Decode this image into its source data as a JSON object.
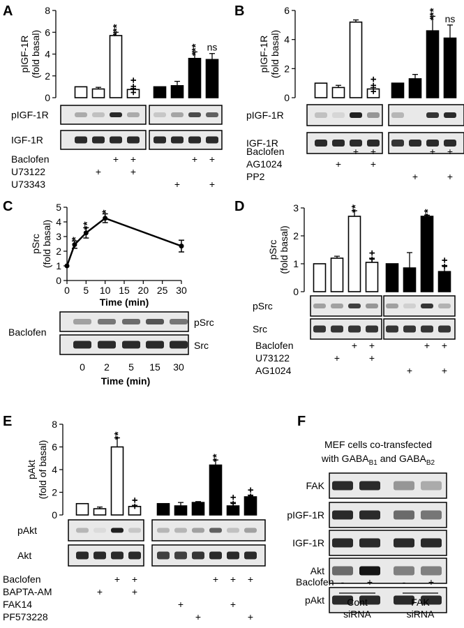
{
  "panels": {
    "A": {
      "label": "A"
    },
    "B": {
      "label": "B"
    },
    "C": {
      "label": "C"
    },
    "D": {
      "label": "D"
    },
    "E": {
      "label": "E"
    },
    "F": {
      "label": "F"
    }
  },
  "chart_data": [
    {
      "id": "A",
      "type": "bar",
      "ylabel": [
        "pIGF-1R",
        "(fold basal)"
      ],
      "ylim": [
        0,
        8
      ],
      "yticks": [
        0,
        2,
        4,
        6,
        8
      ],
      "groups": [
        {
          "color": "white",
          "values": [
            1.0,
            0.8,
            5.7,
            0.75
          ],
          "errors": [
            0.0,
            0.15,
            0.3,
            0.1
          ],
          "annotations": [
            "",
            "",
            "***",
            "+++"
          ]
        },
        {
          "color": "black",
          "values": [
            1.0,
            1.1,
            3.6,
            3.5
          ],
          "errors": [
            0.0,
            0.4,
            0.6,
            0.55
          ],
          "annotations": [
            "",
            "",
            "***",
            "ns"
          ]
        }
      ],
      "blots": [
        "pIGF-1R",
        "IGF-1R"
      ],
      "treatments": [
        {
          "name": "Baclofen",
          "signs": [
            "",
            "",
            "+",
            "+",
            "",
            "",
            "+",
            "+"
          ]
        },
        {
          "name": "U73122",
          "signs": [
            "",
            "+",
            "",
            "+",
            "",
            "",
            "",
            ""
          ]
        },
        {
          "name": "U73343",
          "signs": [
            "",
            "",
            "",
            "",
            "",
            "+",
            "",
            "+"
          ]
        }
      ]
    },
    {
      "id": "B",
      "type": "bar",
      "ylabel": [
        "pIGF-1R",
        "(fold basal)"
      ],
      "ylim": [
        0,
        6
      ],
      "yticks": [
        0,
        2,
        4,
        6
      ],
      "groups": [
        {
          "color": "white",
          "values": [
            1.0,
            0.7,
            5.2,
            0.6
          ],
          "errors": [
            0.0,
            0.15,
            0.15,
            0.1
          ],
          "annotations": [
            "",
            "",
            "",
            "+++"
          ]
        },
        {
          "color": "black",
          "values": [
            1.0,
            1.3,
            4.6,
            4.1
          ],
          "errors": [
            0.0,
            0.3,
            1.0,
            0.9
          ],
          "annotations": [
            "",
            "",
            "***",
            "ns"
          ]
        }
      ],
      "blots": [
        "pIGF-1R",
        "IGF-1R"
      ],
      "treatments": [
        {
          "name": "Baclofen",
          "signs": [
            "",
            "",
            "+",
            "+",
            "",
            "",
            "+",
            "+"
          ]
        },
        {
          "name": "AG1024",
          "signs": [
            "",
            "+",
            "",
            "+",
            "",
            "",
            "",
            ""
          ]
        },
        {
          "name": "PP2",
          "signs": [
            "",
            "",
            "",
            "",
            "",
            "+",
            "",
            "+"
          ]
        }
      ]
    },
    {
      "id": "C",
      "type": "line",
      "ylabel": [
        "pSrc",
        "(fold basal)"
      ],
      "xlabel": "Time (min)",
      "xlim": [
        0,
        30
      ],
      "ylim": [
        0,
        5
      ],
      "xticks": [
        0,
        5,
        10,
        15,
        20,
        25,
        30
      ],
      "yticks": [
        0,
        1,
        2,
        3,
        4,
        5
      ],
      "points": [
        {
          "x": 0,
          "y": 1.0,
          "err": 0.0,
          "ann": ""
        },
        {
          "x": 2,
          "y": 2.45,
          "err": 0.25,
          "ann": "*"
        },
        {
          "x": 5,
          "y": 3.25,
          "err": 0.35,
          "ann": "**"
        },
        {
          "x": 10,
          "y": 4.25,
          "err": 0.3,
          "ann": "*"
        },
        {
          "x": 30,
          "y": 2.35,
          "err": 0.4,
          "ann": ""
        }
      ],
      "blot_treatment": "Baclofen",
      "blots": [
        "pSrc",
        "Src"
      ],
      "blot_times": [
        "0",
        "2",
        "5",
        "15",
        "30"
      ],
      "blot_xlabel": "Time (min)"
    },
    {
      "id": "D",
      "type": "bar",
      "ylabel": [
        "pSrc",
        "(fold basal)"
      ],
      "ylim": [
        0,
        3
      ],
      "yticks": [
        0,
        1,
        2,
        3
      ],
      "groups": [
        {
          "color": "white",
          "values": [
            1.0,
            1.2,
            2.7,
            1.05
          ],
          "errors": [
            0.0,
            0.07,
            0.2,
            0.15
          ],
          "annotations": [
            "",
            "",
            "**",
            "++"
          ]
        },
        {
          "color": "black",
          "values": [
            1.0,
            0.85,
            2.7,
            0.72
          ],
          "errors": [
            0.0,
            0.55,
            0.04,
            0.22
          ],
          "annotations": [
            "",
            "",
            "**",
            "++"
          ]
        }
      ],
      "blots": [
        "pSrc",
        "Src"
      ],
      "treatments": [
        {
          "name": "Baclofen",
          "signs": [
            "",
            "",
            "+",
            "+",
            "",
            "",
            "+",
            "+"
          ]
        },
        {
          "name": "U73122",
          "signs": [
            "",
            "+",
            "",
            "+",
            "",
            "",
            "",
            ""
          ]
        },
        {
          "name": "AG1024",
          "signs": [
            "",
            "",
            "",
            "",
            "",
            "+",
            "",
            "+"
          ]
        }
      ]
    },
    {
      "id": "E",
      "type": "bar",
      "ylabel": [
        "pAkt",
        "(fold of basal)"
      ],
      "ylim": [
        0,
        8
      ],
      "yticks": [
        0,
        2,
        4,
        6,
        8
      ],
      "groups": [
        {
          "color": "white",
          "values": [
            1.0,
            0.55,
            6.0,
            0.75
          ],
          "errors": [
            0.0,
            0.15,
            0.8,
            0.1
          ],
          "annotations": [
            "",
            "",
            "**",
            "++"
          ]
        },
        {
          "color": "black",
          "values": [
            1.0,
            0.8,
            1.1,
            4.4,
            0.8,
            1.6
          ],
          "errors": [
            0.0,
            0.3,
            0.08,
            0.45,
            0.3,
            0.15
          ],
          "annotations": [
            "",
            "",
            "",
            "**",
            "++",
            "++"
          ]
        }
      ],
      "blots": [
        "pAkt",
        "Akt"
      ],
      "treatments": [
        {
          "name": "Baclofen",
          "signs": [
            "",
            "",
            "+",
            "+",
            "",
            "",
            "",
            "+",
            "+",
            "+"
          ]
        },
        {
          "name": "BAPTA-AM",
          "signs": [
            "",
            "+",
            "",
            "+",
            "",
            "",
            "",
            "",
            "",
            ""
          ]
        },
        {
          "name": "FAK14",
          "signs": [
            "",
            "",
            "",
            "",
            "",
            "+",
            "",
            "",
            "+",
            ""
          ]
        },
        {
          "name": "PF573228",
          "signs": [
            "",
            "",
            "",
            "",
            "",
            "",
            "+",
            "",
            "",
            "+"
          ]
        }
      ]
    },
    {
      "id": "F",
      "type": "table",
      "title_line1": "MEF cells co-transfected",
      "title_line2_prefix": "with GABA",
      "title_sub1": "B1",
      "title_and": " and GABA",
      "title_sub2": "B2",
      "blots": [
        "FAK",
        "pIGF-1R",
        "IGF-1R",
        "Akt",
        "pAkt"
      ],
      "treatment": {
        "name": "Baclofen",
        "signs": [
          "-",
          "+",
          "-",
          "+"
        ]
      },
      "conditions": [
        {
          "line1": "Cont",
          "line2": "siRNA"
        },
        {
          "line1": "FAK",
          "line2": "siRNA"
        }
      ]
    }
  ]
}
